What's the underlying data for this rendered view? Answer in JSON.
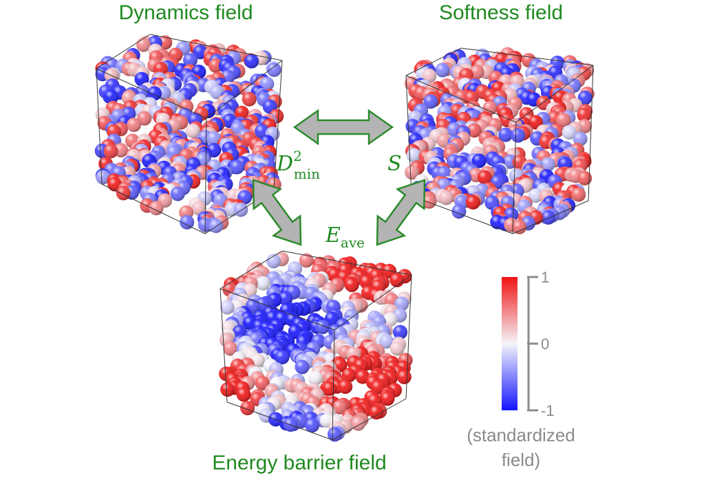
{
  "panels": {
    "dynamics": {
      "title": "Dynamics field"
    },
    "softness": {
      "title": "Softness field"
    },
    "energy": {
      "title": "Energy barrier field"
    }
  },
  "symbols": {
    "dmin": {
      "base": "D",
      "sup": "2",
      "sub": "min"
    },
    "s": {
      "base": "S"
    },
    "eave": {
      "base": "E",
      "sub": "ave"
    }
  },
  "colorbar": {
    "range": [
      -1,
      1
    ],
    "ticks": [
      1,
      0,
      -1
    ],
    "caption": [
      "(standardized",
      "field)"
    ]
  }
}
